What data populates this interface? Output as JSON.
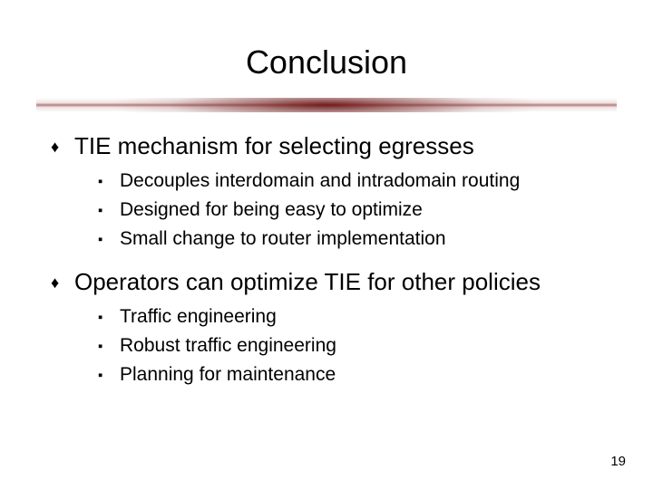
{
  "title": "Conclusion",
  "bullets": [
    {
      "text": "TIE mechanism for selecting egresses",
      "sub": [
        "Decouples interdomain and intradomain routing",
        "Designed for being easy to optimize",
        "Small change to router implementation"
      ]
    },
    {
      "text": "Operators can optimize TIE for other policies",
      "sub": [
        "Traffic engineering",
        "Robust traffic engineering",
        "Planning for maintenance"
      ]
    }
  ],
  "page_number": "19",
  "glyphs": {
    "l1": "♦",
    "l2": "▪"
  },
  "style": {
    "title_fontsize": 36,
    "l1_fontsize": 26,
    "l2_fontsize": 21,
    "text_color": "#000000",
    "background_color": "#ffffff",
    "divider_color": "#641010",
    "slide_width": 720,
    "slide_height": 540
  }
}
